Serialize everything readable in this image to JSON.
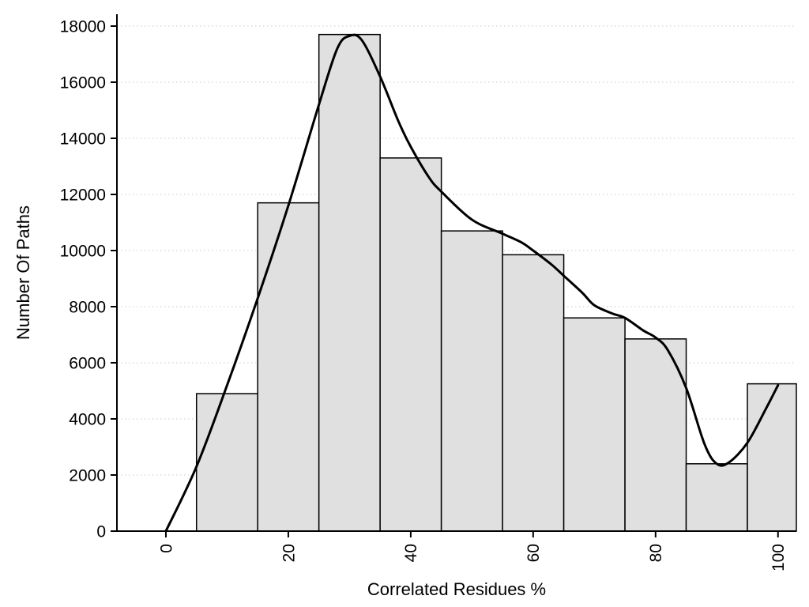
{
  "chart_data": {
    "type": "bar",
    "subtype": "histogram-with-density-curve",
    "title": "",
    "xlabel": "Correlated Residues %",
    "ylabel": "Number Of Paths",
    "xlim": [
      -8,
      103
    ],
    "ylim": [
      0,
      18000
    ],
    "xticks": [
      0,
      20,
      40,
      60,
      80,
      100
    ],
    "yticks": [
      0,
      2000,
      4000,
      6000,
      8000,
      10000,
      12000,
      14000,
      16000,
      18000
    ],
    "grid": "horizontal-dotted",
    "legend": "none",
    "bins": [
      {
        "start": 5,
        "end": 15,
        "count": 4900
      },
      {
        "start": 15,
        "end": 25,
        "count": 11700
      },
      {
        "start": 25,
        "end": 35,
        "count": 17700
      },
      {
        "start": 35,
        "end": 45,
        "count": 13300
      },
      {
        "start": 45,
        "end": 55,
        "count": 10700
      },
      {
        "start": 55,
        "end": 65,
        "count": 9850
      },
      {
        "start": 65,
        "end": 75,
        "count": 7600
      },
      {
        "start": 75,
        "end": 85,
        "count": 6850
      },
      {
        "start": 85,
        "end": 95,
        "count": 2400
      },
      {
        "start": 95,
        "end": 105,
        "count": 5250
      }
    ],
    "density_curve": {
      "points": [
        [
          0,
          0
        ],
        [
          5,
          2300
        ],
        [
          10,
          5200
        ],
        [
          15,
          8300
        ],
        [
          20,
          11600
        ],
        [
          25,
          15200
        ],
        [
          28,
          17200
        ],
        [
          30,
          17650
        ],
        [
          32,
          17500
        ],
        [
          35,
          16200
        ],
        [
          38,
          14600
        ],
        [
          40,
          13700
        ],
        [
          43,
          12600
        ],
        [
          45,
          12100
        ],
        [
          50,
          11100
        ],
        [
          55,
          10600
        ],
        [
          58,
          10300
        ],
        [
          60,
          10000
        ],
        [
          63,
          9500
        ],
        [
          65,
          9100
        ],
        [
          68,
          8500
        ],
        [
          70,
          8050
        ],
        [
          73,
          7750
        ],
        [
          75,
          7600
        ],
        [
          78,
          7150
        ],
        [
          80,
          6900
        ],
        [
          82,
          6450
        ],
        [
          85,
          5100
        ],
        [
          88,
          3100
        ],
        [
          90,
          2400
        ],
        [
          92,
          2450
        ],
        [
          95,
          3150
        ],
        [
          98,
          4350
        ],
        [
          100,
          5200
        ]
      ]
    },
    "colors": {
      "bar_fill": "#e0e0e0",
      "bar_stroke": "#000000",
      "curve": "#000000",
      "grid": "#c9c9c9",
      "axis": "#000000",
      "background": "#ffffff"
    }
  }
}
